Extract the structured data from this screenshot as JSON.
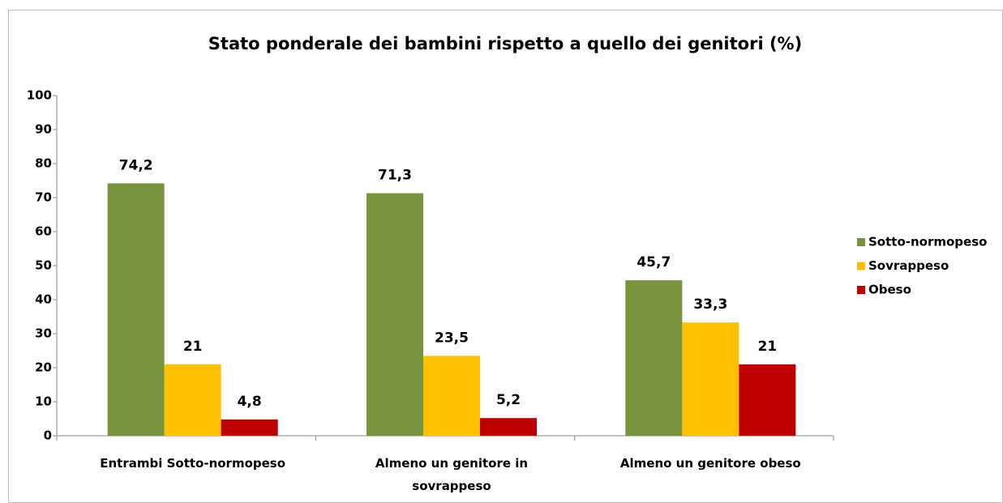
{
  "chart_data": {
    "type": "bar",
    "title": "Stato ponderale dei bambini rispetto a quello dei genitori (%)",
    "categories": [
      "Entrambi Sotto-normopeso",
      "Almeno un genitore in sovrappeso",
      "Almeno un genitore obeso"
    ],
    "series": [
      {
        "name": "Sotto-normopeso",
        "color": "#77933c",
        "values": [
          74.2,
          71.3,
          45.7
        ],
        "value_labels": [
          "74,2",
          "71,3",
          "45,7"
        ]
      },
      {
        "name": "Sovrappeso",
        "color": "#ffc000",
        "values": [
          21,
          23.5,
          33.3
        ],
        "value_labels": [
          "21",
          "23,5",
          "33,3"
        ]
      },
      {
        "name": "Obeso",
        "color": "#c00000",
        "values": [
          4.8,
          5.2,
          21
        ],
        "value_labels": [
          "4,8",
          "5,2",
          "21"
        ]
      }
    ],
    "ylim": [
      0,
      100
    ],
    "yticks": [
      0,
      10,
      20,
      30,
      40,
      50,
      60,
      70,
      80,
      90,
      100
    ],
    "grid": false,
    "legend": "right"
  }
}
